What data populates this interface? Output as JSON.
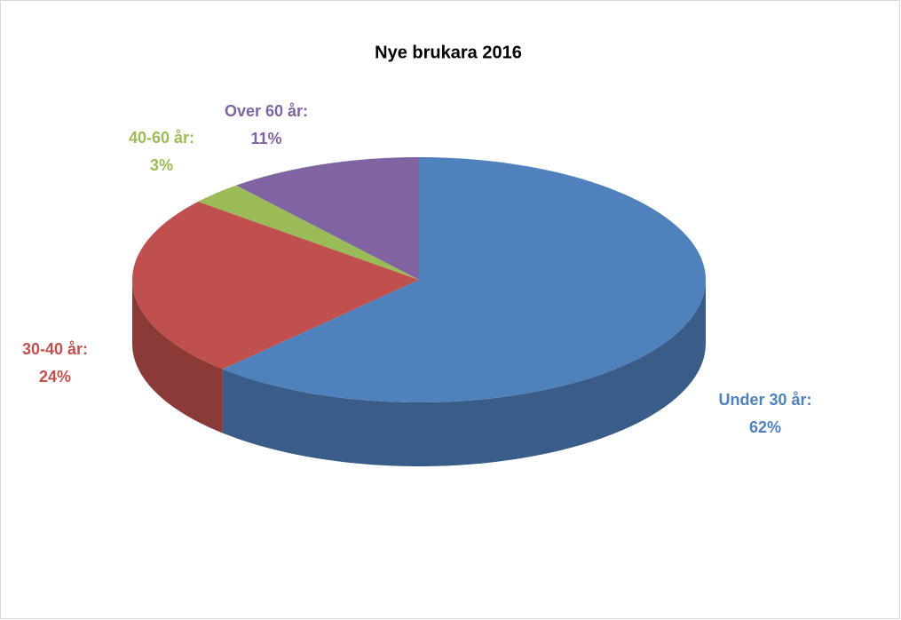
{
  "chart_data": {
    "type": "pie3d",
    "title": "Nye brukara 2016",
    "categories": [
      "Under 30 år:",
      "30-40 år:",
      "40-60 år:",
      "Over 60 år:"
    ],
    "values": [
      62,
      24,
      3,
      11
    ],
    "value_labels": [
      "62%",
      "24%",
      "3%",
      "11%"
    ],
    "colors": [
      "#4f81bd",
      "#c0504d",
      "#9bbb59",
      "#8064a2"
    ]
  }
}
